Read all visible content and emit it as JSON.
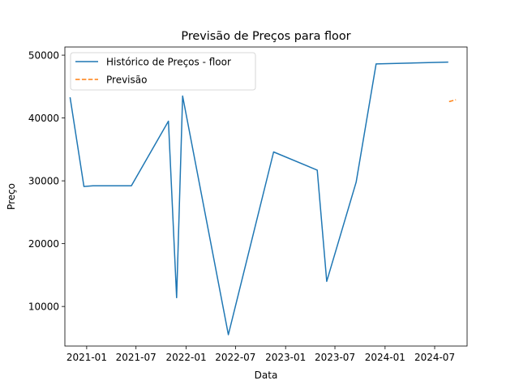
{
  "chart_data": {
    "type": "line",
    "title": "Previsão de Preços para floor",
    "xlabel": "Data",
    "ylabel": "Preço",
    "x_ticks": [
      "2021-01",
      "2021-07",
      "2022-01",
      "2022-07",
      "2023-01",
      "2023-07",
      "2024-01",
      "2024-07"
    ],
    "y_ticks": [
      10000,
      20000,
      30000,
      40000,
      50000
    ],
    "ylim": [
      3700,
      51300
    ],
    "xlim": [
      "2020-10-13",
      "2024-10-28"
    ],
    "legend_position": "upper-left",
    "grid": false,
    "series": [
      {
        "name": "Histórico de Preços - floor",
        "style": "solid",
        "color": "#1f77b4",
        "points": [
          {
            "x": "2020-11-01",
            "y": 43300
          },
          {
            "x": "2020-12-22",
            "y": 29100
          },
          {
            "x": "2021-01-24",
            "y": 29200
          },
          {
            "x": "2021-06-14",
            "y": 29200
          },
          {
            "x": "2021-10-28",
            "y": 39500
          },
          {
            "x": "2021-11-27",
            "y": 11400
          },
          {
            "x": "2021-12-19",
            "y": 43500
          },
          {
            "x": "2022-06-05",
            "y": 5500
          },
          {
            "x": "2022-11-18",
            "y": 34600
          },
          {
            "x": "2023-04-27",
            "y": 31700
          },
          {
            "x": "2023-06-01",
            "y": 14000
          },
          {
            "x": "2023-09-17",
            "y": 29800
          },
          {
            "x": "2023-11-29",
            "y": 48600
          },
          {
            "x": "2024-08-20",
            "y": 48900
          }
        ]
      },
      {
        "name": "Previsão",
        "style": "dashed",
        "color": "#ff7f0e",
        "points": [
          {
            "x": "2024-08-23",
            "y": 42600
          },
          {
            "x": "2024-09-17",
            "y": 42900
          }
        ]
      }
    ]
  }
}
